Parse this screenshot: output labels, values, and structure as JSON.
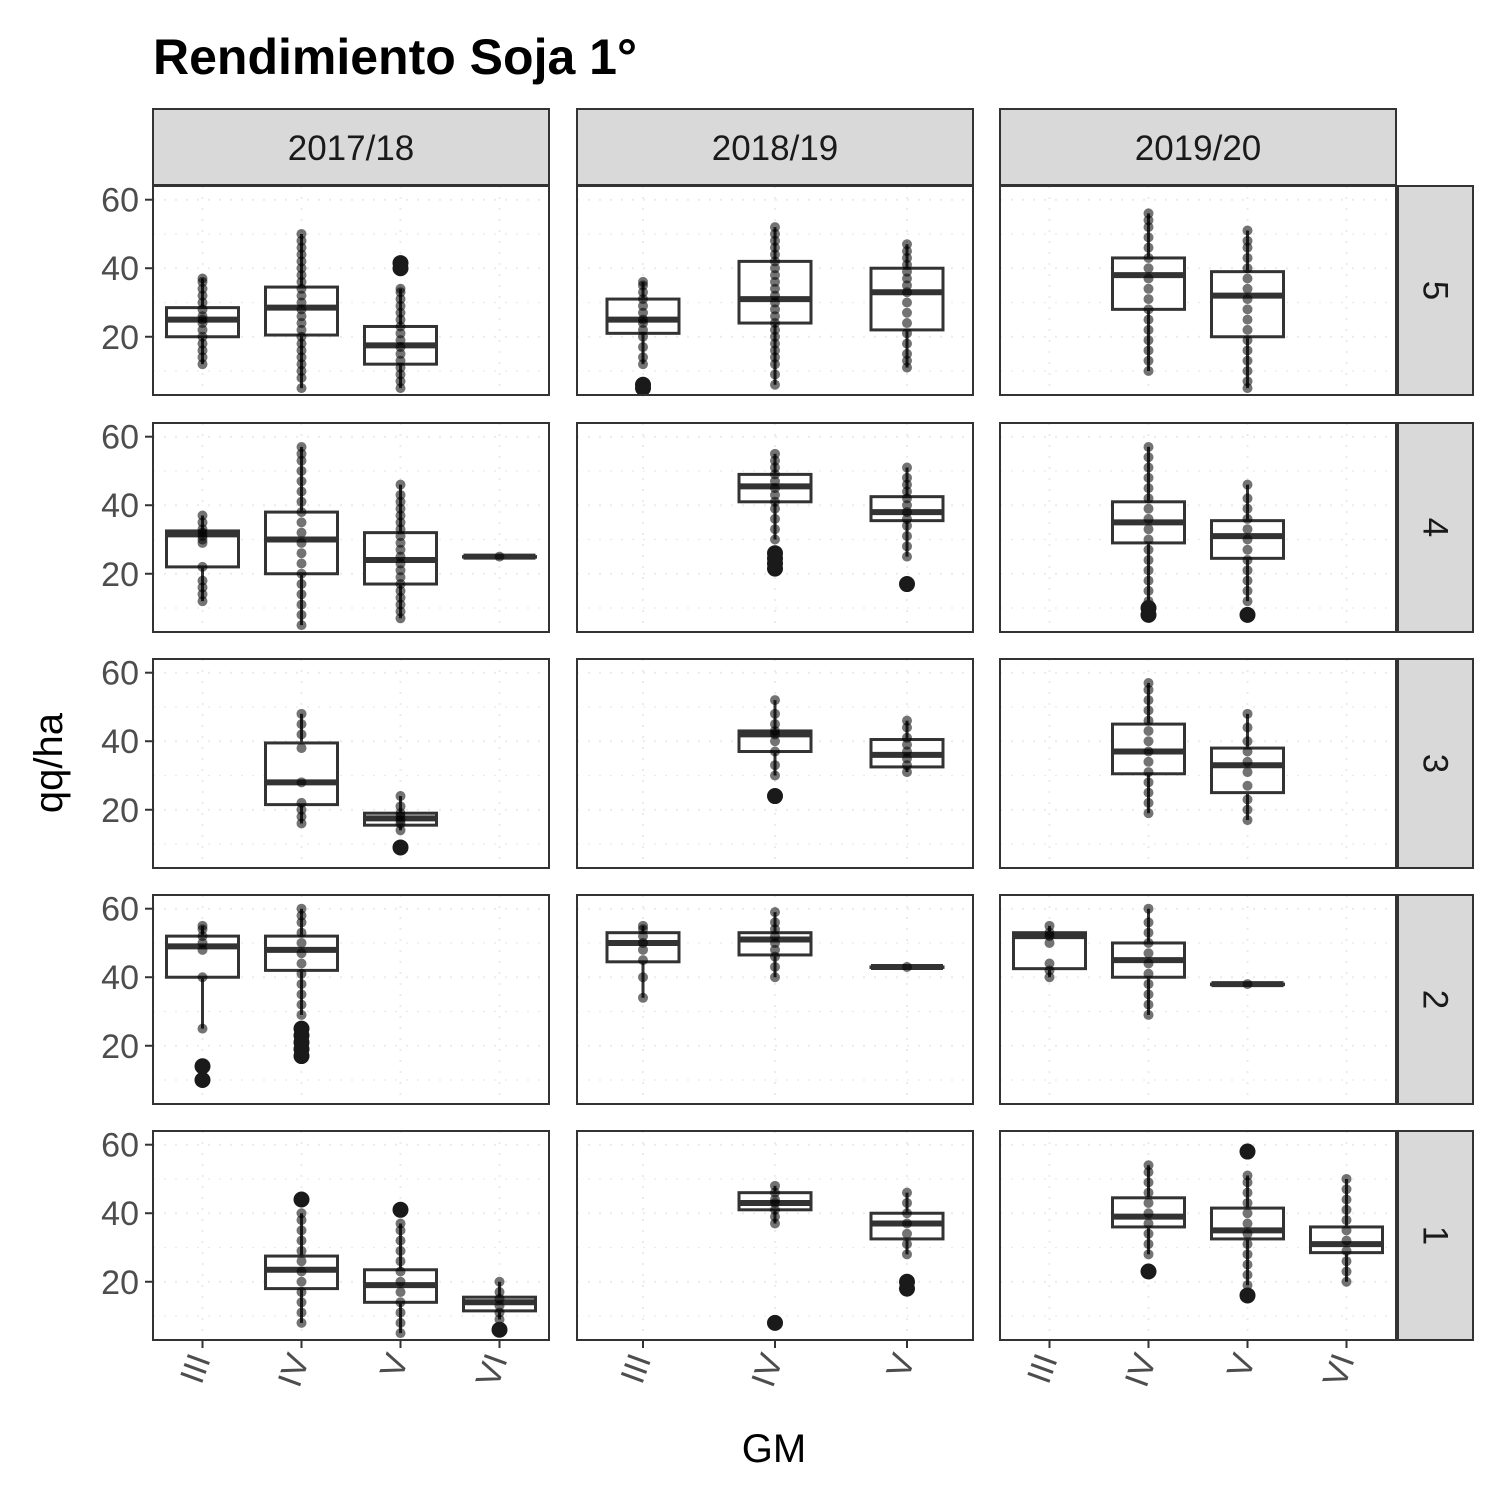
{
  "chart_data": {
    "type": "boxplot",
    "title": "Rendimiento Soja 1°",
    "xlabel": "GM",
    "ylabel": "qq/ha",
    "ylim": [
      3,
      64
    ],
    "y_ticks": [
      20,
      40,
      60
    ],
    "categories": [
      "III",
      "IV",
      "V",
      "VI"
    ],
    "columns": [
      "2017/18",
      "2018/19",
      "2019/20"
    ],
    "rows": [
      "5",
      "4",
      "3",
      "2",
      "1"
    ],
    "column_categories": [
      [
        "III",
        "IV",
        "V",
        "VI"
      ],
      [
        "III",
        "IV",
        "V"
      ],
      [
        "III",
        "IV",
        "V",
        "VI"
      ]
    ],
    "grid": "dotted",
    "colors": {
      "strip_fill": "#d9d9d9",
      "border": "#333333",
      "point": "#000000",
      "text": "#4d4d4d"
    },
    "panels": [
      {
        "column": "2017/18",
        "row": "5",
        "boxes": [
          {
            "gm": "III",
            "low": 12,
            "q1": 20,
            "median": 25,
            "q3": 28.5,
            "high": 37,
            "points": [
              12,
              14,
              16,
              18,
              20,
              22,
              24,
              25,
              26,
              28,
              30,
              32,
              34,
              36,
              37
            ]
          },
          {
            "gm": "IV",
            "low": 5,
            "q1": 20.5,
            "median": 28.5,
            "q3": 34.5,
            "high": 50,
            "points": [
              5,
              8,
              10,
              12,
              14,
              16,
              18,
              20,
              22,
              24,
              26,
              28,
              30,
              32,
              34,
              36,
              38,
              40,
              42,
              44,
              46,
              48,
              50
            ]
          },
          {
            "gm": "V",
            "low": 5,
            "q1": 12,
            "median": 17.5,
            "q3": 23,
            "high": 34,
            "points": [
              5,
              7,
              9,
              11,
              13,
              15,
              17,
              19,
              21,
              23,
              25,
              27,
              29,
              31,
              33,
              34
            ],
            "outliers": [
              40,
              41.5
            ]
          }
        ]
      },
      {
        "column": "2018/19",
        "row": "5",
        "boxes": [
          {
            "gm": "III",
            "low": 12,
            "q1": 21,
            "median": 25,
            "q3": 31,
            "high": 36,
            "points": [
              12,
              14,
              17,
              20,
              22,
              24,
              25,
              27,
              29,
              31,
              33,
              35,
              36
            ],
            "outliers": [
              5,
              6
            ]
          },
          {
            "gm": "IV",
            "low": 6,
            "q1": 24,
            "median": 31,
            "q3": 42,
            "high": 52,
            "points": [
              6,
              9,
              12,
              14,
              16,
              18,
              20,
              22,
              24,
              26,
              28,
              30,
              32,
              34,
              36,
              38,
              40,
              42,
              44,
              46,
              48,
              50,
              52
            ]
          },
          {
            "gm": "V",
            "low": 11,
            "q1": 22,
            "median": 33,
            "q3": 40,
            "high": 47,
            "points": [
              11,
              13,
              15,
              18,
              21,
              24,
              27,
              30,
              33,
              35,
              37,
              39,
              41,
              43,
              45,
              47
            ]
          }
        ]
      },
      {
        "column": "2019/20",
        "row": "5",
        "boxes": [
          {
            "gm": "IV",
            "low": 10,
            "q1": 28,
            "median": 38,
            "q3": 43,
            "high": 56,
            "points": [
              10,
              13,
              16,
              19,
              22,
              25,
              28,
              31,
              34,
              37,
              40,
              43,
              46,
              49,
              52,
              54,
              56
            ]
          },
          {
            "gm": "V",
            "low": 5,
            "q1": 20,
            "median": 32,
            "q3": 39,
            "high": 51,
            "points": [
              5,
              7,
              10,
              13,
              16,
              19,
              22,
              25,
              28,
              31,
              34,
              37,
              40,
              43,
              46,
              48,
              51
            ]
          }
        ]
      },
      {
        "column": "2017/18",
        "row": "4",
        "boxes": [
          {
            "gm": "III",
            "low": 12,
            "q1": 22,
            "median": 31.5,
            "q3": 32.5,
            "high": 37,
            "points": [
              12,
              14,
              16,
              18,
              22,
              29,
              30,
              31,
              32,
              33,
              35,
              37
            ]
          },
          {
            "gm": "IV",
            "low": 5,
            "q1": 20,
            "median": 30,
            "q3": 38,
            "high": 57,
            "points": [
              5,
              8,
              11,
              14,
              17,
              20,
              23,
              26,
              29,
              32,
              35,
              38,
              41,
              44,
              47,
              50,
              53,
              55,
              57
            ]
          },
          {
            "gm": "V",
            "low": 7,
            "q1": 17,
            "median": 24,
            "q3": 32,
            "high": 46,
            "points": [
              7,
              9,
              11,
              13,
              15,
              17,
              19,
              21,
              23,
              25,
              27,
              29,
              31,
              33,
              35,
              37,
              39,
              41,
              43,
              46
            ]
          },
          {
            "gm": "VI",
            "low": 25,
            "q1": 25,
            "median": 25,
            "q3": 25,
            "high": 25,
            "points": [
              25
            ]
          }
        ]
      },
      {
        "column": "2018/19",
        "row": "4",
        "boxes": [
          {
            "gm": "IV",
            "low": 30,
            "q1": 41,
            "median": 45.5,
            "q3": 49,
            "high": 55,
            "points": [
              30,
              33,
              36,
              39,
              41,
              43,
              45,
              47,
              49,
              51,
              53,
              55
            ],
            "outliers": [
              21.5,
              23,
              24.5,
              26
            ]
          },
          {
            "gm": "V",
            "low": 25,
            "q1": 35.5,
            "median": 38,
            "q3": 42.5,
            "high": 51,
            "points": [
              25,
              28,
              31,
              34,
              36,
              38,
              40,
              42,
              44,
              46,
              48,
              51
            ],
            "outliers": [
              17
            ]
          }
        ]
      },
      {
        "column": "2019/20",
        "row": "4",
        "boxes": [
          {
            "gm": "IV",
            "low": 12,
            "q1": 29,
            "median": 35,
            "q3": 41,
            "high": 57,
            "points": [
              12,
              15,
              18,
              21,
              24,
              27,
              30,
              33,
              36,
              39,
              42,
              45,
              48,
              51,
              54,
              57
            ],
            "outliers": [
              8,
              10
            ]
          },
          {
            "gm": "V",
            "low": 12,
            "q1": 24.5,
            "median": 31,
            "q3": 35.5,
            "high": 46,
            "points": [
              12,
              15,
              18,
              21,
              24,
              27,
              30,
              33,
              36,
              39,
              42,
              46
            ],
            "outliers": [
              8
            ]
          }
        ]
      },
      {
        "column": "2017/18",
        "row": "3",
        "boxes": [
          {
            "gm": "IV",
            "low": 16,
            "q1": 21.5,
            "median": 28,
            "q3": 39.5,
            "high": 48,
            "points": [
              16,
              18,
              20,
              22,
              28,
              38,
              42,
              45,
              48
            ]
          },
          {
            "gm": "V",
            "low": 14,
            "q1": 15.5,
            "median": 17.5,
            "q3": 19,
            "high": 24,
            "points": [
              14,
              16,
              17,
              18,
              19,
              21,
              24
            ],
            "outliers": [
              9
            ]
          }
        ]
      },
      {
        "column": "2018/19",
        "row": "3",
        "boxes": [
          {
            "gm": "IV",
            "low": 30,
            "q1": 37,
            "median": 42,
            "q3": 43,
            "high": 52,
            "points": [
              30,
              33,
              37,
              40,
              42,
              43,
              45,
              48,
              52
            ],
            "outliers": [
              24
            ]
          },
          {
            "gm": "V",
            "low": 31,
            "q1": 32.5,
            "median": 36,
            "q3": 40.5,
            "high": 46,
            "points": [
              31,
              33,
              35,
              37,
              39,
              41,
              44,
              46
            ]
          }
        ]
      },
      {
        "column": "2019/20",
        "row": "3",
        "boxes": [
          {
            "gm": "IV",
            "low": 19,
            "q1": 30.5,
            "median": 37,
            "q3": 45,
            "high": 57,
            "points": [
              19,
              22,
              25,
              28,
              31,
              34,
              37,
              40,
              43,
              46,
              49,
              52,
              55,
              57
            ]
          },
          {
            "gm": "V",
            "low": 17,
            "q1": 25,
            "median": 33,
            "q3": 38,
            "high": 48,
            "points": [
              17,
              20,
              23,
              27,
              31,
              34,
              37,
              40,
              44,
              48
            ]
          }
        ]
      },
      {
        "column": "2017/18",
        "row": "2",
        "boxes": [
          {
            "gm": "III",
            "low": 25,
            "q1": 40,
            "median": 49,
            "q3": 52,
            "high": 55,
            "points": [
              25,
              40,
              48,
              50,
              52,
              54,
              55
            ],
            "outliers": [
              10,
              14
            ]
          },
          {
            "gm": "IV",
            "low": 29,
            "q1": 42,
            "median": 48,
            "q3": 52,
            "high": 60,
            "points": [
              29,
              32,
              35,
              38,
              41,
              44,
              47,
              50,
              53,
              56,
              58,
              60
            ],
            "outliers": [
              17,
              19,
              21,
              23,
              25
            ]
          }
        ]
      },
      {
        "column": "2018/19",
        "row": "2",
        "boxes": [
          {
            "gm": "III",
            "low": 34,
            "q1": 44.5,
            "median": 50,
            "q3": 53,
            "high": 55,
            "points": [
              34,
              40,
              45,
              48,
              50,
              52,
              54,
              55
            ]
          },
          {
            "gm": "IV",
            "low": 40,
            "q1": 46.5,
            "median": 51,
            "q3": 53,
            "high": 59,
            "points": [
              40,
              43,
              46,
              48,
              50,
              52,
              54,
              56,
              59
            ]
          },
          {
            "gm": "V",
            "low": 43,
            "q1": 43,
            "median": 43,
            "q3": 43,
            "high": 43,
            "points": [
              43
            ]
          }
        ]
      },
      {
        "column": "2019/20",
        "row": "2",
        "boxes": [
          {
            "gm": "III",
            "low": 40,
            "q1": 42.5,
            "median": 52,
            "q3": 53,
            "high": 55,
            "points": [
              40,
              42,
              44,
              50,
              52,
              53,
              55
            ]
          },
          {
            "gm": "IV",
            "low": 29,
            "q1": 40,
            "median": 45,
            "q3": 50,
            "high": 60,
            "points": [
              29,
              32,
              35,
              38,
              41,
              44,
              47,
              50,
              53,
              56,
              60
            ]
          },
          {
            "gm": "V",
            "low": 38,
            "q1": 38,
            "median": 38,
            "q3": 38,
            "high": 38,
            "points": [
              38
            ]
          }
        ]
      },
      {
        "column": "2017/18",
        "row": "1",
        "boxes": [
          {
            "gm": "IV",
            "low": 8,
            "q1": 18,
            "median": 23.5,
            "q3": 27.5,
            "high": 40,
            "points": [
              8,
              11,
              14,
              17,
              20,
              23,
              26,
              29,
              32,
              35,
              38,
              40
            ],
            "outliers": [
              44
            ]
          },
          {
            "gm": "V",
            "low": 5,
            "q1": 14,
            "median": 19,
            "q3": 23.5,
            "high": 37,
            "points": [
              5,
              8,
              11,
              14,
              17,
              20,
              23,
              26,
              29,
              32,
              35,
              37
            ],
            "outliers": [
              41
            ]
          },
          {
            "gm": "VI",
            "low": 9,
            "q1": 11.5,
            "median": 14,
            "q3": 15.5,
            "high": 20,
            "points": [
              9,
              11,
              13,
              15,
              17,
              20
            ],
            "outliers": [
              6
            ]
          }
        ]
      },
      {
        "column": "2018/19",
        "row": "1",
        "boxes": [
          {
            "gm": "IV",
            "low": 37,
            "q1": 41,
            "median": 43,
            "q3": 46,
            "high": 48,
            "points": [
              37,
              39,
              41,
              43,
              44,
              46,
              48
            ],
            "outliers": [
              8
            ]
          },
          {
            "gm": "V",
            "low": 28,
            "q1": 32.5,
            "median": 37,
            "q3": 40,
            "high": 46,
            "points": [
              28,
              31,
              34,
              37,
              40,
              43,
              46
            ],
            "outliers": [
              18,
              20
            ]
          }
        ]
      },
      {
        "column": "2019/20",
        "row": "1",
        "boxes": [
          {
            "gm": "IV",
            "low": 28,
            "q1": 36,
            "median": 39,
            "q3": 44.5,
            "high": 54,
            "points": [
              28,
              31,
              34,
              37,
              40,
              43,
              46,
              49,
              52,
              54
            ],
            "outliers": [
              23
            ]
          },
          {
            "gm": "V",
            "low": 19,
            "q1": 32.5,
            "median": 35,
            "q3": 41.5,
            "high": 51,
            "points": [
              19,
              22,
              25,
              28,
              31,
              34,
              37,
              40,
              43,
              46,
              49,
              51
            ],
            "outliers": [
              16,
              58
            ]
          },
          {
            "gm": "VI",
            "low": 20,
            "q1": 28.5,
            "median": 31,
            "q3": 36,
            "high": 50,
            "points": [
              20,
              23,
              26,
              29,
              32,
              35,
              38,
              41,
              44,
              47,
              50
            ]
          }
        ]
      }
    ]
  }
}
